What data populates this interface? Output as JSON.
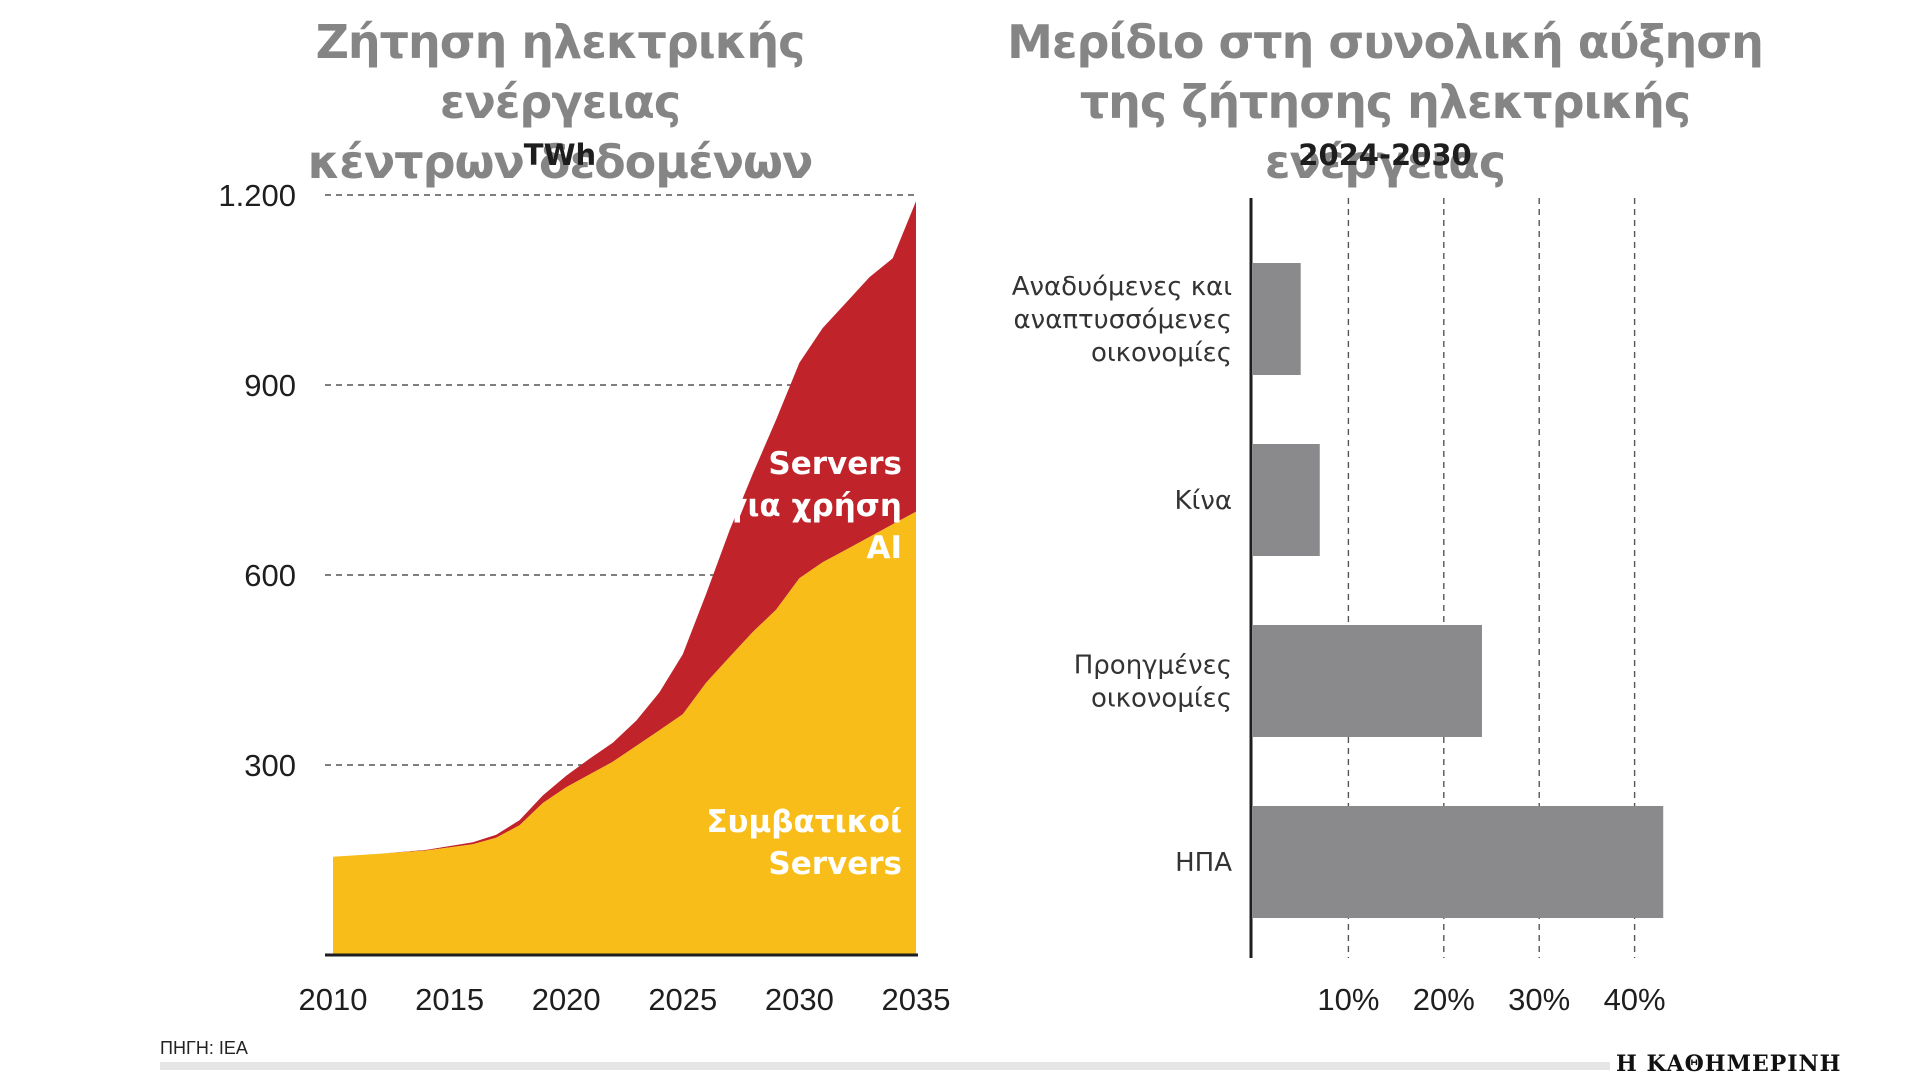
{
  "chart_data": [
    {
      "type": "area",
      "title": "Ζήτηση ηλεκτρικής ενέργειας κέντρων δεδομένων",
      "title_lines": [
        "Ζήτηση ηλεκτρικής ενέργειας",
        "κέντρων δεδομένων"
      ],
      "unit": "TWh",
      "ylim": [
        0,
        1200
      ],
      "yticks": [
        300,
        600,
        900,
        1200
      ],
      "ytick_labels": [
        "300",
        "600",
        "900",
        "1.200"
      ],
      "xlim": [
        2010,
        2035
      ],
      "xticks": [
        "2010",
        "2015",
        "2020",
        "2025",
        "2030",
        "2035"
      ],
      "x": [
        2010,
        2012,
        2014,
        2016,
        2017,
        2018,
        2019,
        2020,
        2021,
        2022,
        2023,
        2024,
        2025,
        2026,
        2027,
        2028,
        2029,
        2030,
        2031,
        2032,
        2033,
        2034,
        2035
      ],
      "series": [
        {
          "name": "Συμβατικοί Servers",
          "label_lines": [
            "Συμβατικοί",
            "Servers"
          ],
          "color": "#F8BD18",
          "values": [
            155,
            160,
            165,
            175,
            185,
            205,
            240,
            265,
            285,
            305,
            330,
            355,
            380,
            430,
            470,
            510,
            545,
            595,
            620,
            640,
            660,
            680,
            700
          ]
        },
        {
          "name": "Servers για χρήση AI",
          "label_lines": [
            "Servers",
            "για χρήση",
            "AI"
          ],
          "color": "#C1232A",
          "values": [
            0,
            0,
            1,
            3,
            5,
            8,
            12,
            18,
            25,
            30,
            40,
            60,
            95,
            140,
            200,
            250,
            300,
            340,
            370,
            390,
            410,
            420,
            490
          ]
        }
      ]
    },
    {
      "type": "bar",
      "orientation": "horizontal",
      "title": "Μερίδιο στη συνολική αύξηση της ζήτησης ηλεκτρικής ενέργειας",
      "title_lines": [
        "Μερίδιο στη συνολική αύξηση",
        "της ζήτησης ηλεκτρικής ενέργειας"
      ],
      "subtitle": "2024-2030",
      "categories": [
        [
          "Αναδυόμενες και",
          "αναπτυσσόμενες",
          "οικονομίες"
        ],
        [
          "Κίνα"
        ],
        [
          "Προηγμένες",
          "οικονομίες"
        ],
        [
          "ΗΠΑ"
        ]
      ],
      "values": [
        5,
        7,
        24,
        43
      ],
      "xticks": [
        "10%",
        "20%",
        "30%",
        "40%"
      ],
      "xlim": [
        0,
        45
      ],
      "color": "#8A8A8D"
    }
  ],
  "footer": {
    "source": "ΠΗΓΗ: IEA",
    "brand": "Η ΚΑΘΗΜΕΡΙΝΗ"
  }
}
